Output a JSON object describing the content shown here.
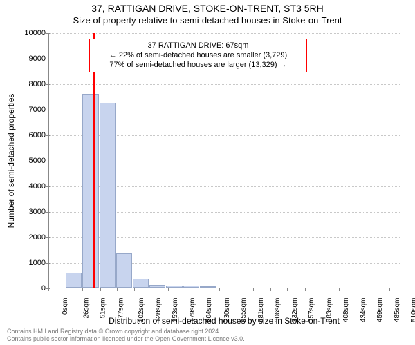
{
  "header": {
    "address": "37, RATTIGAN DRIVE, STOKE-ON-TRENT, ST3 5RH",
    "subtitle": "Size of property relative to semi-detached houses in Stoke-on-Trent"
  },
  "axes": {
    "ylabel": "Number of semi-detached properties",
    "xlabel": "Distribution of semi-detached houses by size in Stoke-on-Trent",
    "ylabel_fontsize": 12,
    "xlabel_fontsize": 12
  },
  "chart": {
    "type": "histogram",
    "ylim": [
      0,
      10000
    ],
    "ytick_step": 1000,
    "yticks": [
      0,
      1000,
      2000,
      3000,
      4000,
      5000,
      6000,
      7000,
      8000,
      9000,
      10000
    ],
    "xlim_sqm": [
      0,
      525
    ],
    "xticks_sqm": [
      0,
      26,
      51,
      77,
      102,
      128,
      153,
      179,
      204,
      230,
      255,
      281,
      306,
      332,
      357,
      383,
      408,
      434,
      459,
      485,
      510
    ],
    "bin_width_sqm": 25,
    "bins": [
      {
        "start_sqm": 0,
        "count": 0
      },
      {
        "start_sqm": 25,
        "count": 600
      },
      {
        "start_sqm": 50,
        "count": 7600
      },
      {
        "start_sqm": 75,
        "count": 7250
      },
      {
        "start_sqm": 100,
        "count": 1350
      },
      {
        "start_sqm": 125,
        "count": 350
      },
      {
        "start_sqm": 150,
        "count": 120
      },
      {
        "start_sqm": 175,
        "count": 90
      },
      {
        "start_sqm": 200,
        "count": 70
      },
      {
        "start_sqm": 225,
        "count": 60
      },
      {
        "start_sqm": 250,
        "count": 0
      },
      {
        "start_sqm": 275,
        "count": 0
      },
      {
        "start_sqm": 300,
        "count": 0
      },
      {
        "start_sqm": 325,
        "count": 0
      },
      {
        "start_sqm": 350,
        "count": 0
      },
      {
        "start_sqm": 375,
        "count": 0
      },
      {
        "start_sqm": 400,
        "count": 0
      },
      {
        "start_sqm": 425,
        "count": 0
      },
      {
        "start_sqm": 450,
        "count": 0
      },
      {
        "start_sqm": 475,
        "count": 0
      },
      {
        "start_sqm": 500,
        "count": 0
      }
    ],
    "bar_fill": "#c8d4ee",
    "bar_stroke": "#97a8c9",
    "grid_color": "#c8c8c8",
    "axis_color": "#888888",
    "background_color": "#ffffff",
    "tick_fontsize": 11,
    "xtick_fontsize": 10
  },
  "marker": {
    "value_sqm": 67,
    "color": "#ff0000",
    "line_width": 2
  },
  "annotation": {
    "border_color": "#ff0000",
    "background_color": "#ffffff",
    "fontsize": 11,
    "lines": [
      "37 RATTIGAN DRIVE: 67sqm",
      "← 22% of semi-detached houses are smaller (3,729)",
      "77% of semi-detached houses are larger (13,329) →"
    ]
  },
  "footer": {
    "line1": "Contains HM Land Registry data © Crown copyright and database right 2024.",
    "line2": "Contains public sector information licensed under the Open Government Licence v3.0."
  }
}
